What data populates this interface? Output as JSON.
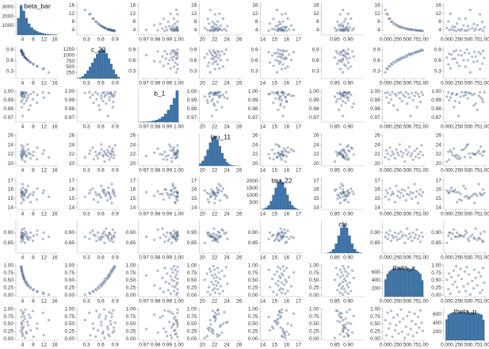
{
  "chart_data": {
    "type": "pair",
    "point_color": "#1f3d6b",
    "bar_color": "#3a74a8",
    "variables": [
      {
        "name": "beta_bar",
        "lim": [
          1.5,
          17.5
        ],
        "ticks": [
          4,
          8,
          12,
          16
        ],
        "samples": [
          13.8,
          11.9,
          11.6,
          9.4,
          9.5,
          7.9,
          8.1,
          6.9,
          7.0,
          6.1,
          6.3,
          5.5,
          5.8,
          5.1,
          5.4,
          4.8,
          4.9,
          4.4,
          4.6,
          4.2,
          4.4,
          4.0,
          4.2,
          3.9,
          4.0,
          3.7,
          3.8,
          3.6,
          3.7,
          3.5,
          3.6,
          3.4
        ],
        "bins": [
          2,
          3,
          4,
          5,
          6,
          7,
          8,
          9,
          10,
          11,
          12,
          13,
          14,
          15,
          16,
          17
        ],
        "counts": [
          1800,
          3200,
          2600,
          1800,
          1200,
          800,
          550,
          380,
          260,
          180,
          120,
          80,
          50,
          30,
          20
        ],
        "count_lim": [
          0,
          3500
        ],
        "count_ticks": [
          1000,
          2000,
          3000
        ]
      },
      {
        "name": "c_22",
        "lim": [
          0.1,
          1.0
        ],
        "ticks": [
          0.3,
          0.6,
          0.9
        ],
        "samples": [
          0.27,
          0.38,
          0.36,
          0.45,
          0.43,
          0.51,
          0.49,
          0.56,
          0.54,
          0.61,
          0.58,
          0.64,
          0.61,
          0.67,
          0.65,
          0.7,
          0.68,
          0.74,
          0.71,
          0.76,
          0.78,
          0.75,
          0.8,
          0.78,
          0.83,
          0.81,
          0.85,
          0.83,
          0.87,
          0.86,
          0.9,
          0.88
        ],
        "bins": [
          0.1,
          0.15,
          0.2,
          0.25,
          0.3,
          0.35,
          0.4,
          0.45,
          0.5,
          0.55,
          0.6,
          0.65,
          0.7,
          0.75,
          0.8,
          0.85,
          0.9,
          0.95,
          1.0
        ],
        "counts": [
          10,
          40,
          100,
          200,
          330,
          500,
          680,
          870,
          1050,
          1200,
          1280,
          1230,
          1080,
          860,
          620,
          380,
          180,
          60
        ],
        "count_lim": [
          0,
          1400
        ],
        "count_ticks": [
          250,
          500,
          750,
          1000,
          1250
        ]
      },
      {
        "name": "b_1",
        "lim": [
          0.965,
          1.002
        ],
        "ticks": [
          0.97,
          0.98,
          0.99,
          {
            "value": 1.0,
            "label": "1.00"
          }
        ],
        "samples": [
          0.998,
          0.993,
          0.999,
          0.987,
          0.996,
          0.991,
          0.999,
          0.984,
          0.997,
          0.995,
          0.979,
          0.998,
          0.992,
          0.999,
          0.989,
          0.996,
          0.994,
          0.999,
          0.986,
          0.997,
          0.993,
          0.972,
          0.998,
          0.99,
          0.995,
          0.999,
          0.982,
          0.997,
          0.994,
          0.988,
          0.999,
          0.996
        ],
        "bins": [
          0.965,
          0.9675,
          0.97,
          0.9725,
          0.975,
          0.9775,
          0.98,
          0.9825,
          0.985,
          0.9875,
          0.99,
          0.9925,
          0.995,
          0.9975,
          1.0
        ],
        "counts": [
          2,
          5,
          10,
          20,
          35,
          60,
          100,
          160,
          250,
          380,
          560,
          800,
          1100,
          1450
        ],
        "count_lim": [
          0,
          1500
        ]
      },
      {
        "name": "tau_11",
        "lim": [
          19.5,
          26.5
        ],
        "ticks": [
          20,
          22,
          24,
          26
        ],
        "samples": [
          21.3,
          22.8,
          22.1,
          20.9,
          23.4,
          21.7,
          22.5,
          22.0,
          21.1,
          23.0,
          22.3,
          21.8,
          24.1,
          22.6,
          21.5,
          22.2,
          20.4,
          22.9,
          21.9,
          22.4,
          23.6,
          21.6,
          22.1,
          20.8,
          22.7,
          21.4,
          23.2,
          22.0,
          21.2,
          22.5,
          23.9,
          21.8
        ],
        "bins": [
          19.5,
          19.9,
          20.3,
          20.7,
          21.1,
          21.5,
          21.9,
          22.3,
          22.7,
          23.1,
          23.5,
          23.9,
          24.3,
          24.7,
          25.1,
          25.5
        ],
        "counts": [
          142,
          329,
          649,
          1092,
          1565,
          1911,
          1990,
          1765,
          1335,
          859,
          471,
          220,
          88,
          30,
          9
        ],
        "count_lim": [
          0,
          2200
        ]
      },
      {
        "name": "tau_22",
        "lim": [
          13.8,
          17.4
        ],
        "ticks": [
          14,
          15,
          16,
          17
        ],
        "samples": [
          15.2,
          15.9,
          15.6,
          14.9,
          16.1,
          15.4,
          15.7,
          15.5,
          14.6,
          16.4,
          15.3,
          15.8,
          15.1,
          15.6,
          16.0,
          15.3,
          15.9,
          14.8,
          15.5,
          16.2,
          15.4,
          15.7,
          15.0,
          15.6,
          16.6,
          15.2,
          15.8,
          14.5,
          15.5,
          16.0,
          15.3,
          15.7
        ],
        "bins": [
          14,
          14.2,
          14.4,
          14.6,
          14.8,
          15,
          15.2,
          15.4,
          15.6,
          15.8,
          16,
          16.2,
          16.4,
          16.6,
          16.8,
          17
        ],
        "counts": [
          42,
          118,
          284,
          584,
          1023,
          1525,
          1938,
          2100,
          1938,
          1525,
          1023,
          584,
          284,
          118,
          42
        ],
        "count_lim": [
          0,
          2300
        ],
        "count_ticks": [
          500,
          1000,
          1500,
          2000
        ]
      },
      {
        "name": "chi",
        "lim": [
          0.8,
          0.96
        ],
        "ticks": [
          0.85,
          {
            "value": 0.9,
            "label": "0.90"
          }
        ],
        "samples": [
          0.88,
          0.9,
          0.87,
          0.89,
          0.91,
          0.86,
          0.885,
          0.875,
          0.9,
          0.88,
          0.865,
          0.895,
          0.87,
          0.905,
          0.88,
          0.89,
          0.85,
          0.885,
          0.92,
          0.87,
          0.895,
          0.88,
          0.86,
          0.9,
          0.875,
          0.89,
          0.915,
          0.87,
          0.885,
          0.855,
          0.9,
          0.88
        ],
        "bins": [
          0.82,
          0.83,
          0.84,
          0.85,
          0.86,
          0.87,
          0.88,
          0.89,
          0.9,
          0.91,
          0.92,
          0.93,
          0.94,
          0.95
        ],
        "counts": [
          17,
          66,
          203,
          487,
          910,
          1324,
          1500,
          1324,
          910,
          487,
          203,
          66,
          17
        ],
        "count_lim": [
          0,
          1700
        ]
      },
      {
        "name": "theta_a",
        "lim": [
          -0.05,
          1.05
        ],
        "ticks": [
          {
            "value": 0,
            "label": "0.00"
          },
          {
            "value": 0.25,
            "label": "0.25"
          },
          {
            "value": 0.5,
            "label": "0.50"
          },
          0.75,
          {
            "value": 1,
            "label": "1.00"
          }
        ],
        "samples": [
          0.02,
          0.05,
          0.08,
          0.11,
          0.14,
          0.17,
          0.2,
          0.23,
          0.27,
          0.3,
          0.33,
          0.36,
          0.39,
          0.42,
          0.45,
          0.48,
          0.52,
          0.55,
          0.58,
          0.61,
          0.64,
          0.67,
          0.7,
          0.73,
          0.77,
          0.8,
          0.83,
          0.86,
          0.89,
          0.92,
          0.95,
          0.98
        ],
        "bins": [
          0,
          0.05,
          0.1,
          0.15,
          0.2,
          0.25,
          0.3,
          0.35,
          0.4,
          0.45,
          0.5,
          0.55,
          0.6,
          0.65,
          0.7,
          0.75,
          0.8,
          0.85,
          0.9,
          0.95,
          1
        ],
        "counts": [
          420,
          560,
          620,
          660,
          690,
          700,
          680,
          710,
          690,
          700,
          670,
          690,
          700,
          680,
          690,
          660,
          650,
          610,
          560,
          400
        ],
        "count_lim": [
          0,
          800
        ],
        "count_ticks": [
          200,
          400,
          600
        ]
      },
      {
        "name": "theta_p",
        "lim": [
          -0.05,
          1.05
        ],
        "ticks": [
          {
            "value": 0,
            "label": "0.00"
          },
          {
            "value": 0.25,
            "label": "0.25"
          },
          {
            "value": 0.5,
            "label": "0.50"
          },
          0.75,
          {
            "value": 1,
            "label": "1.00"
          }
        ],
        "samples": [
          0.63,
          0.12,
          0.88,
          0.35,
          0.51,
          0.94,
          0.07,
          0.72,
          0.29,
          0.46,
          0.81,
          0.18,
          0.57,
          0.99,
          0.24,
          0.68,
          0.03,
          0.41,
          0.77,
          0.15,
          0.9,
          0.33,
          0.6,
          0.09,
          0.85,
          0.49,
          0.21,
          0.74,
          0.38,
          0.96,
          0.54,
          0.27
        ],
        "bins": [
          0,
          0.05,
          0.1,
          0.15,
          0.2,
          0.25,
          0.3,
          0.35,
          0.4,
          0.45,
          0.5,
          0.55,
          0.6,
          0.65,
          0.7,
          0.75,
          0.8,
          0.85,
          0.9,
          0.95,
          1
        ],
        "counts": [
          480,
          590,
          620,
          640,
          650,
          630,
          640,
          660,
          640,
          650,
          630,
          660,
          640,
          650,
          630,
          640,
          620,
          610,
          590,
          470
        ],
        "count_lim": [
          0,
          750
        ],
        "count_ticks": [
          200,
          400,
          600
        ]
      }
    ]
  }
}
